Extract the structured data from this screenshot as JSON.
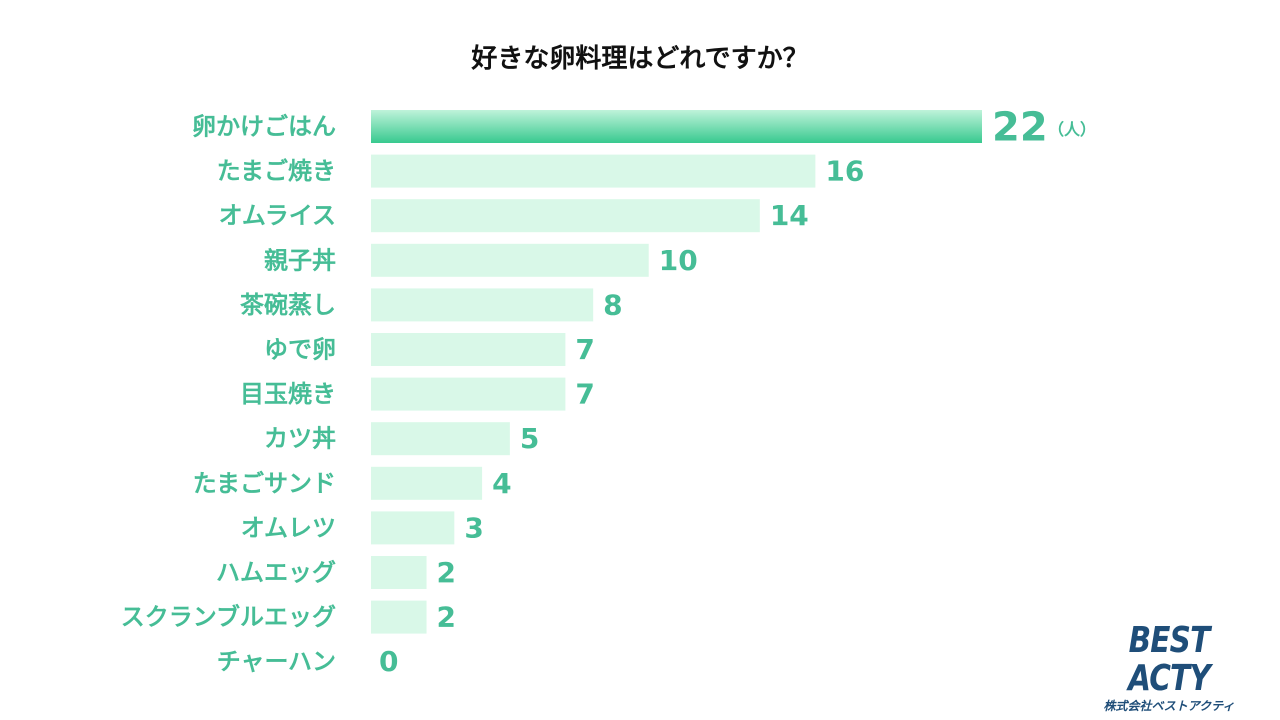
{
  "chart_data": {
    "type": "bar",
    "orientation": "horizontal",
    "title": "好きな卵料理はどれですか？",
    "categories": [
      "卵かけごはん",
      "たまご焼き",
      "オムライス",
      "親子丼",
      "茶碗蒸し",
      "ゆで卵",
      "目玉焼き",
      "カツ丼",
      "たまごサンド",
      "オムレツ",
      "ハムエッグ",
      "スクランブルエッグ",
      "チャーハン"
    ],
    "values": [
      22,
      16,
      14,
      10,
      8,
      7,
      7,
      5,
      4,
      3,
      2,
      2,
      0
    ],
    "unit_label": "（人）",
    "highlight_index": 0,
    "xlim": [
      0,
      22
    ],
    "grid": false,
    "legend": "none",
    "colors": {
      "highlight_top": "#bff3da",
      "highlight_bottom": "#38c98f",
      "bar": "#d9f8e8",
      "category_text": "#46bd96",
      "value_text": "#46bd96"
    }
  },
  "logo": {
    "main": "BEST ACTY",
    "sub": "株式会社ベストアクティ",
    "color": "#1f4e79"
  }
}
